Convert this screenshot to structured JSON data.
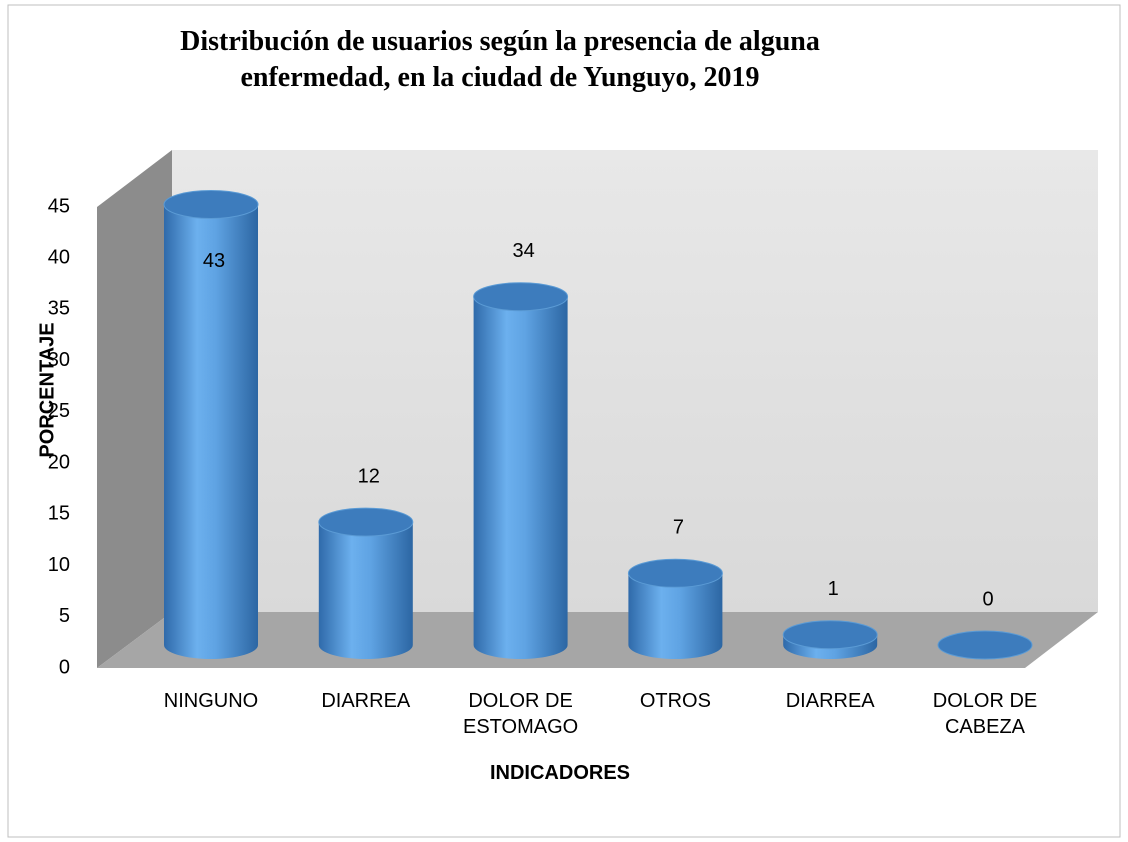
{
  "chart_data": {
    "type": "bar3d",
    "title": "Distribución de usuarios según la presencia de alguna enfermedad, en la ciudad de Yunguyo, 2019",
    "x_label": "INDICADORES",
    "y_label": "PORCENTAJE",
    "categories": [
      "NINGUNO",
      "DIARREA",
      "DOLOR DE ESTOMAGO",
      "OTROS",
      "DIARREA",
      "DOLOR DE CABEZA"
    ],
    "values": [
      43,
      12,
      34,
      7,
      1,
      0
    ],
    "color": "#5b9bd5",
    "ylim": [
      0,
      45
    ],
    "yticks": [
      0,
      5,
      10,
      15,
      20,
      25,
      30,
      35,
      40,
      45
    ],
    "grid": false
  }
}
